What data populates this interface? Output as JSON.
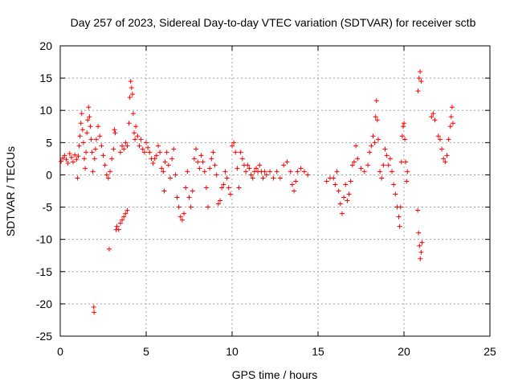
{
  "chart_data": {
    "type": "scatter",
    "title": "Day 257 of 2023, Sidereal Day-to-day VTEC variation (SDTVAR) for receiver sctb",
    "xlabel": "GPS time / hours",
    "ylabel": "SDTVAR / TECUs",
    "xlim": [
      0,
      25
    ],
    "ylim": [
      -25,
      20
    ],
    "xticks": [
      "0",
      "5",
      "10",
      "15",
      "20",
      "25"
    ],
    "yticks": [
      "-25",
      "-20",
      "-15",
      "-10",
      "-5",
      "0",
      "5",
      "10",
      "15",
      "20"
    ],
    "grid": true,
    "marker": "plus",
    "color": "#ff0000",
    "series": [
      {
        "name": "SDTVAR",
        "points": [
          [
            0.05,
            2.1
          ],
          [
            0.15,
            2.6
          ],
          [
            0.25,
            3.0
          ],
          [
            0.35,
            2.4
          ],
          [
            0.45,
            1.8
          ],
          [
            0.55,
            3.3
          ],
          [
            0.65,
            2.7
          ],
          [
            0.75,
            2.0
          ],
          [
            0.85,
            3.1
          ],
          [
            0.95,
            2.4
          ],
          [
            1.0,
            -0.5
          ],
          [
            1.05,
            2.9
          ],
          [
            1.1,
            4.5
          ],
          [
            1.15,
            6.0
          ],
          [
            1.2,
            8.0
          ],
          [
            1.25,
            9.5
          ],
          [
            1.3,
            7.0
          ],
          [
            1.35,
            5.0
          ],
          [
            1.4,
            2.5
          ],
          [
            1.45,
            1.0
          ],
          [
            1.5,
            3.5
          ],
          [
            1.55,
            6.5
          ],
          [
            1.6,
            8.5
          ],
          [
            1.65,
            10.5
          ],
          [
            1.7,
            9.0
          ],
          [
            1.75,
            7.5
          ],
          [
            1.8,
            5.5
          ],
          [
            1.85,
            3.5
          ],
          [
            1.9,
            0.5
          ],
          [
            1.95,
            -20.5
          ],
          [
            1.97,
            -21.3
          ],
          [
            2.0,
            2.5
          ],
          [
            2.05,
            4.0
          ],
          [
            2.1,
            5.5
          ],
          [
            2.2,
            7.5
          ],
          [
            2.3,
            6.0
          ],
          [
            2.4,
            4.5
          ],
          [
            2.5,
            3.0
          ],
          [
            2.6,
            1.5
          ],
          [
            2.7,
            0.0
          ],
          [
            2.8,
            -0.5
          ],
          [
            2.85,
            -11.5
          ],
          [
            2.9,
            0.5
          ],
          [
            3.0,
            2.5
          ],
          [
            3.1,
            4.0
          ],
          [
            3.15,
            7.0
          ],
          [
            3.2,
            6.5
          ],
          [
            3.25,
            -8.5
          ],
          [
            3.3,
            -8.0
          ],
          [
            3.4,
            -8.5
          ],
          [
            3.5,
            -7.5
          ],
          [
            3.6,
            -7.0
          ],
          [
            3.7,
            -6.5
          ],
          [
            3.8,
            -6.0
          ],
          [
            3.9,
            -5.5
          ],
          [
            3.5,
            3.5
          ],
          [
            3.6,
            4.5
          ],
          [
            3.7,
            4.0
          ],
          [
            3.8,
            5.0
          ],
          [
            3.9,
            4.5
          ],
          [
            4.0,
            8.0
          ],
          [
            4.05,
            12.0
          ],
          [
            4.1,
            14.5
          ],
          [
            4.15,
            13.5
          ],
          [
            4.2,
            12.5
          ],
          [
            4.25,
            9.5
          ],
          [
            4.3,
            6.5
          ],
          [
            4.35,
            5.5
          ],
          [
            4.4,
            7.5
          ],
          [
            4.5,
            6.0
          ],
          [
            4.6,
            4.5
          ],
          [
            4.7,
            5.5
          ],
          [
            4.8,
            4.0
          ],
          [
            4.9,
            3.5
          ],
          [
            5.0,
            5.0
          ],
          [
            5.1,
            4.2
          ],
          [
            5.2,
            3.5
          ],
          [
            5.3,
            2.5
          ],
          [
            5.4,
            1.8
          ],
          [
            5.5,
            2.5
          ],
          [
            5.6,
            3.0
          ],
          [
            5.7,
            4.5
          ],
          [
            5.8,
            3.5
          ],
          [
            5.9,
            1.0
          ],
          [
            6.0,
            0.5
          ],
          [
            6.05,
            -2.5
          ],
          [
            6.1,
            2.0
          ],
          [
            6.2,
            3.5
          ],
          [
            6.3,
            1.5
          ],
          [
            6.4,
            -0.5
          ],
          [
            6.5,
            2.5
          ],
          [
            6.6,
            4.0
          ],
          [
            6.7,
            0.0
          ],
          [
            6.8,
            -3.5
          ],
          [
            6.9,
            -5.0
          ],
          [
            7.0,
            -6.5
          ],
          [
            7.1,
            -7.0
          ],
          [
            7.2,
            -6.0
          ],
          [
            7.3,
            -2.0
          ],
          [
            7.4,
            0.5
          ],
          [
            7.5,
            -3.5
          ],
          [
            7.6,
            -5.0
          ],
          [
            7.7,
            -2.5
          ],
          [
            7.8,
            2.5
          ],
          [
            7.9,
            4.0
          ],
          [
            8.0,
            2.0
          ],
          [
            8.1,
            1.0
          ],
          [
            8.2,
            3.0
          ],
          [
            8.3,
            2.0
          ],
          [
            8.4,
            0.5
          ],
          [
            8.5,
            -2.0
          ],
          [
            8.6,
            -5.0
          ],
          [
            8.7,
            1.0
          ],
          [
            8.8,
            2.5
          ],
          [
            8.9,
            3.5
          ],
          [
            9.0,
            1.5
          ],
          [
            9.1,
            0.0
          ],
          [
            9.2,
            -4.5
          ],
          [
            9.3,
            -4.0
          ],
          [
            9.4,
            -2.0
          ],
          [
            9.5,
            -1.5
          ],
          [
            9.6,
            0.5
          ],
          [
            9.7,
            -0.5
          ],
          [
            9.8,
            -2.0
          ],
          [
            9.9,
            -3.0
          ],
          [
            10.0,
            4.5
          ],
          [
            10.1,
            5.0
          ],
          [
            10.2,
            3.5
          ],
          [
            10.3,
            1.0
          ],
          [
            10.4,
            -2.0
          ],
          [
            10.5,
            3.5
          ],
          [
            10.6,
            2.5
          ],
          [
            10.7,
            1.5
          ],
          [
            10.8,
            0.5
          ],
          [
            10.9,
            1.5
          ],
          [
            11.0,
            1.0
          ],
          [
            11.1,
            0.0
          ],
          [
            11.2,
            -0.5
          ],
          [
            11.3,
            0.5
          ],
          [
            11.4,
            1.0
          ],
          [
            11.5,
            0.5
          ],
          [
            11.6,
            1.5
          ],
          [
            11.7,
            0.5
          ],
          [
            11.8,
            -0.5
          ],
          [
            11.9,
            0.5
          ],
          [
            12.0,
            0.0
          ],
          [
            12.2,
            0.5
          ],
          [
            12.4,
            -0.5
          ],
          [
            12.6,
            0.5
          ],
          [
            12.8,
            -0.5
          ],
          [
            13.0,
            1.5
          ],
          [
            13.2,
            2.0
          ],
          [
            13.4,
            0.5
          ],
          [
            13.5,
            -1.5
          ],
          [
            13.6,
            -2.5
          ],
          [
            13.7,
            -1.0
          ],
          [
            13.8,
            0.5
          ],
          [
            14.0,
            1.0
          ],
          [
            14.2,
            0.5
          ],
          [
            14.4,
            0.0
          ],
          [
            15.5,
            -1.0
          ],
          [
            15.7,
            -0.5
          ],
          [
            15.9,
            -0.5
          ],
          [
            16.0,
            -1.5
          ],
          [
            16.1,
            0.5
          ],
          [
            16.2,
            -2.5
          ],
          [
            16.3,
            -4.5
          ],
          [
            16.4,
            -6.0
          ],
          [
            16.5,
            -3.5
          ],
          [
            16.6,
            -1.5
          ],
          [
            16.7,
            -4.0
          ],
          [
            16.8,
            -3.0
          ],
          [
            16.9,
            -1.0
          ],
          [
            17.0,
            1.5
          ],
          [
            17.1,
            2.0
          ],
          [
            17.2,
            4.5
          ],
          [
            17.3,
            2.5
          ],
          [
            17.5,
            1.0
          ],
          [
            17.7,
            0.5
          ],
          [
            17.9,
            1.5
          ],
          [
            18.0,
            3.5
          ],
          [
            18.1,
            4.5
          ],
          [
            18.2,
            6.0
          ],
          [
            18.3,
            5.0
          ],
          [
            18.35,
            9.0
          ],
          [
            18.4,
            11.5
          ],
          [
            18.45,
            8.5
          ],
          [
            18.5,
            5.5
          ],
          [
            18.6,
            0.5
          ],
          [
            18.7,
            -0.5
          ],
          [
            18.8,
            1.5
          ],
          [
            18.9,
            4.0
          ],
          [
            19.0,
            3.0
          ],
          [
            19.1,
            1.5
          ],
          [
            19.2,
            2.5
          ],
          [
            19.3,
            0.5
          ],
          [
            19.4,
            -1.5
          ],
          [
            19.5,
            -3.0
          ],
          [
            19.6,
            -5.0
          ],
          [
            19.7,
            -6.5
          ],
          [
            19.75,
            -8.0
          ],
          [
            19.8,
            -5.0
          ],
          [
            19.85,
            2.0
          ],
          [
            19.9,
            6.0
          ],
          [
            19.95,
            7.5
          ],
          [
            20.0,
            8.0
          ],
          [
            20.05,
            5.5
          ],
          [
            20.1,
            2.0
          ],
          [
            20.15,
            -1.0
          ],
          [
            20.2,
            0.5
          ],
          [
            20.8,
            -5.5
          ],
          [
            20.85,
            -9.0
          ],
          [
            20.9,
            -11.0
          ],
          [
            20.95,
            -13.0
          ],
          [
            21.0,
            -12.0
          ],
          [
            21.05,
            -10.5
          ],
          [
            20.82,
            13.0
          ],
          [
            20.88,
            15.0
          ],
          [
            20.94,
            16.0
          ],
          [
            21.0,
            14.5
          ],
          [
            21.6,
            9.0
          ],
          [
            21.7,
            9.5
          ],
          [
            21.8,
            8.5
          ],
          [
            22.0,
            6.0
          ],
          [
            22.1,
            5.5
          ],
          [
            22.2,
            4.0
          ],
          [
            22.3,
            2.5
          ],
          [
            22.4,
            2.0
          ],
          [
            22.5,
            3.0
          ],
          [
            22.6,
            5.5
          ],
          [
            22.7,
            7.5
          ],
          [
            22.75,
            9.0
          ],
          [
            22.8,
            10.5
          ],
          [
            22.85,
            8.0
          ]
        ]
      }
    ]
  }
}
